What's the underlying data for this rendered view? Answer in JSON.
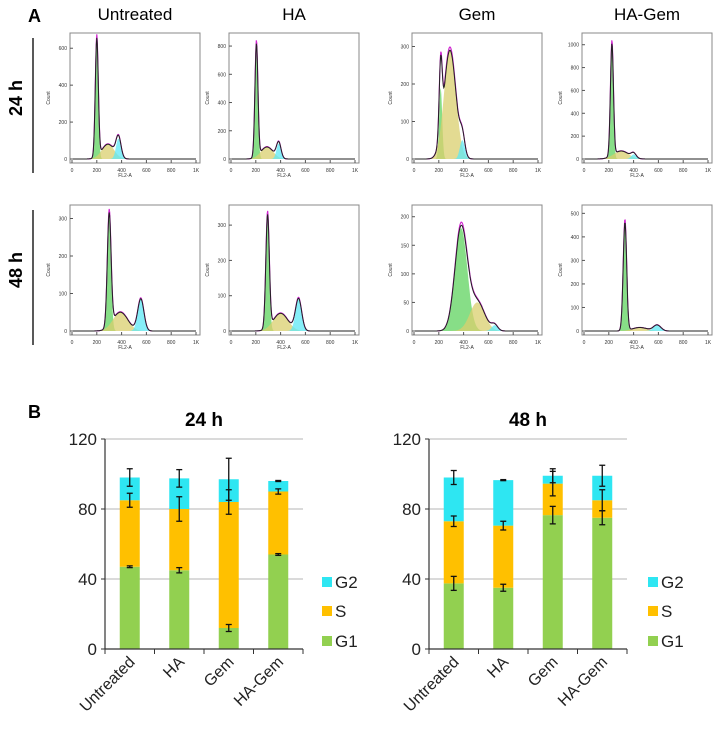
{
  "colors": {
    "G1": "#92d050",
    "S": "#ffc000",
    "G2": "#2ee6f2",
    "G1_hist": "#5fd35f",
    "S_hist": "#d9cf6e",
    "G2_hist": "#5ee8f5",
    "fit": "#222222",
    "overlay": "#d020d0"
  },
  "chart_data": [
    {
      "type": "area",
      "panel_label": "A",
      "columns": [
        "Untreated",
        "HA",
        "Gem",
        "HA-Gem"
      ],
      "rows": [
        "24 h",
        "48 h"
      ],
      "xlabel": "FL2-A",
      "ylabel": "Count",
      "x_ticks": [
        "0",
        "200",
        "400",
        "600",
        "800",
        "1K"
      ],
      "xlim": [
        0,
        1000
      ],
      "panels": [
        {
          "row": "24 h",
          "column": "Untreated",
          "ylim": [
            0,
            650
          ],
          "y_ticks": [
            "0",
            "200",
            "400",
            "600"
          ],
          "components": {
            "G1": {
              "peak": 200,
              "sd": 12,
              "height": 640
            },
            "S": {
              "peak": 290,
              "sd": 50,
              "height": 80
            },
            "G2": {
              "peak": 375,
              "sd": 20,
              "height": 110
            }
          }
        },
        {
          "row": "24 h",
          "column": "HA",
          "ylim": [
            0,
            850
          ],
          "y_ticks": [
            "0",
            "200",
            "400",
            "600",
            "800"
          ],
          "components": {
            "G1": {
              "peak": 205,
              "sd": 12,
              "height": 800
            },
            "S": {
              "peak": 290,
              "sd": 50,
              "height": 85
            },
            "G2": {
              "peak": 385,
              "sd": 18,
              "height": 110
            }
          }
        },
        {
          "row": "24 h",
          "column": "Gem",
          "ylim": [
            0,
            320
          ],
          "y_ticks": [
            "0",
            "100",
            "200",
            "300"
          ],
          "components": {
            "G1": {
              "peak": 215,
              "sd": 12,
              "height": 190
            },
            "S": {
              "peak": 290,
              "sd": 48,
              "height": 290
            },
            "G2": {
              "peak": 390,
              "sd": 20,
              "height": 50
            }
          }
        },
        {
          "row": "24 h",
          "column": "HA-Gem",
          "ylim": [
            0,
            1050
          ],
          "y_ticks": [
            "0",
            "200",
            "400",
            "600",
            "800",
            "1000"
          ],
          "components": {
            "G1": {
              "peak": 225,
              "sd": 12,
              "height": 980
            },
            "S": {
              "peak": 300,
              "sd": 60,
              "height": 70
            },
            "G2": {
              "peak": 400,
              "sd": 20,
              "height": 40
            }
          }
        },
        {
          "row": "48 h",
          "column": "Untreated",
          "ylim": [
            0,
            320
          ],
          "y_ticks": [
            "0",
            "100",
            "200",
            "300"
          ],
          "components": {
            "G1": {
              "peak": 300,
              "sd": 15,
              "height": 300
            },
            "S": {
              "peak": 390,
              "sd": 60,
              "height": 50
            },
            "G2": {
              "peak": 555,
              "sd": 25,
              "height": 85
            }
          }
        },
        {
          "row": "48 h",
          "column": "HA",
          "ylim": [
            0,
            340
          ],
          "y_ticks": [
            "0",
            "100",
            "200",
            "300"
          ],
          "components": {
            "G1": {
              "peak": 295,
              "sd": 14,
              "height": 320
            },
            "S": {
              "peak": 400,
              "sd": 60,
              "height": 50
            },
            "G2": {
              "peak": 545,
              "sd": 25,
              "height": 90
            }
          }
        },
        {
          "row": "48 h",
          "column": "Gem",
          "ylim": [
            0,
            210
          ],
          "y_ticks": [
            "0",
            "50",
            "100",
            "150",
            "200"
          ],
          "components": {
            "G1": {
              "peak": 380,
              "sd": 50,
              "height": 180
            },
            "S": {
              "peak": 510,
              "sd": 60,
              "height": 50
            },
            "G2": {
              "peak": 650,
              "sd": 25,
              "height": 10
            }
          }
        },
        {
          "row": "48 h",
          "column": "HA-Gem",
          "ylim": [
            0,
            510
          ],
          "y_ticks": [
            "0",
            "100",
            "200",
            "300",
            "400",
            "500"
          ],
          "components": {
            "G1": {
              "peak": 330,
              "sd": 14,
              "height": 460
            },
            "S": {
              "peak": 450,
              "sd": 60,
              "height": 15
            },
            "G2": {
              "peak": 590,
              "sd": 30,
              "height": 25
            }
          }
        }
      ]
    },
    {
      "type": "bar",
      "stacked": true,
      "panel_label": "B",
      "title": "24 h",
      "categories": [
        "Untreated",
        "HA",
        "Gem",
        "HA-Gem"
      ],
      "ylim": [
        0,
        120
      ],
      "y_ticks": [
        "0",
        "40",
        "80",
        "120"
      ],
      "grid": true,
      "legend": "right",
      "series": [
        {
          "name": "G1",
          "values": [
            47,
            45,
            12,
            54
          ],
          "errors": [
            0.5,
            1.5,
            2,
            0.5
          ]
        },
        {
          "name": "S",
          "values": [
            38,
            35,
            72,
            36
          ],
          "errors": [
            4,
            7,
            7,
            1.5
          ]
        },
        {
          "name": "G2",
          "values": [
            13,
            17.5,
            13,
            6
          ],
          "errors": [
            5,
            5,
            12,
            0.3
          ]
        }
      ]
    },
    {
      "type": "bar",
      "stacked": true,
      "title": "48 h",
      "categories": [
        "Untreated",
        "HA",
        "Gem",
        "HA-Gem"
      ],
      "ylim": [
        0,
        120
      ],
      "y_ticks": [
        "0",
        "40",
        "80",
        "120"
      ],
      "grid": true,
      "legend": "right",
      "series": [
        {
          "name": "G1",
          "values": [
            37.5,
            35,
            76.5,
            75
          ],
          "errors": [
            4,
            2,
            5,
            4
          ]
        },
        {
          "name": "S",
          "values": [
            35.5,
            35.5,
            18,
            10
          ],
          "errors": [
            3,
            2.5,
            7,
            6
          ]
        },
        {
          "name": "G2",
          "values": [
            25,
            26,
            4.5,
            14
          ],
          "errors": [
            4,
            0.3,
            4,
            6
          ]
        }
      ]
    }
  ]
}
